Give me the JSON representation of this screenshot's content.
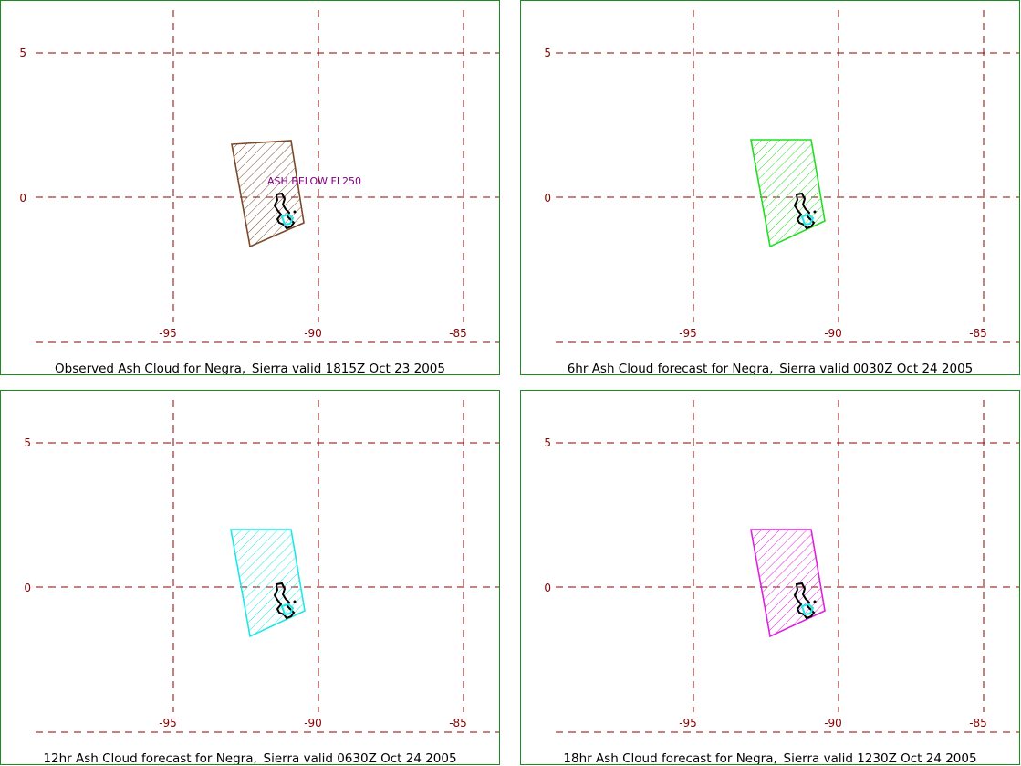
{
  "panels": [
    {
      "caption": "Observed Ash Cloud for Negra,_Sierra valid 1815Z Oct 23 2005",
      "outline_color": "#7a4a2a",
      "annotation": "ASH BELOW FL250"
    },
    {
      "caption": "6hr Ash Cloud forecast for Negra,_Sierra valid 0030Z Oct 24 2005",
      "outline_color": "#22dd22",
      "annotation": ""
    },
    {
      "caption": "12hr Ash Cloud forecast for Negra,_Sierra valid 0630Z Oct 24 2005",
      "outline_color": "#22e6e6",
      "annotation": ""
    },
    {
      "caption": "18hr Ash Cloud forecast for Negra,_Sierra valid 1230Z Oct 24 2005",
      "outline_color": "#dd22dd",
      "annotation": ""
    }
  ],
  "axes": {
    "lon_ticks": [
      "-95",
      "-90",
      "-85"
    ],
    "lat_ticks": [
      "5",
      "0"
    ]
  },
  "island_colors": {
    "outline": "#000000",
    "highlight": "#22e6e6"
  }
}
